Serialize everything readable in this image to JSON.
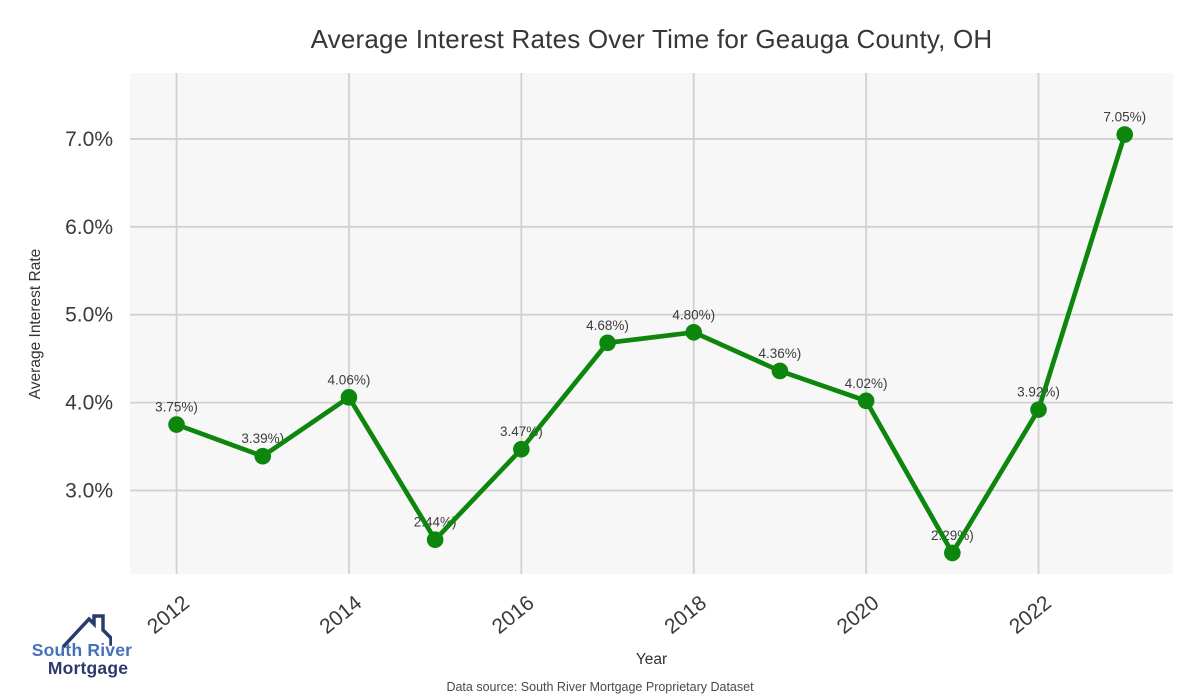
{
  "chart": {
    "title": "Average Interest Rates Over Time for Geauga County, OH",
    "xlabel": "Year",
    "ylabel": "Average Interest Rate",
    "source_note": "Data source: South River Mortgage Proprietary Dataset"
  },
  "logo": {
    "line1": "South River",
    "line2": "Mortgage",
    "icon": "house-roof-icon",
    "line1_color": "#4472ba",
    "line2_color": "#2b3a6e",
    "roof_color": "#2b3a6e"
  },
  "chart_data": {
    "type": "line",
    "title": "Average Interest Rates Over Time for Geauga County, OH",
    "xlabel": "Year",
    "ylabel": "Average Interest Rate",
    "x": [
      2012,
      2013,
      2014,
      2015,
      2016,
      2017,
      2018,
      2019,
      2020,
      2021,
      2022,
      2023
    ],
    "values": [
      3.75,
      3.39,
      4.06,
      2.44,
      3.47,
      4.68,
      4.8,
      4.36,
      4.02,
      2.29,
      3.92,
      7.05
    ],
    "point_labels": [
      "3.75%)",
      "3.39%)",
      "4.06%)",
      "2.44%)",
      "3.47%)",
      "4.68%)",
      "4.80%)",
      "4.36%)",
      "4.02%)",
      "2.29%)",
      "3.92%)",
      "7.05%)"
    ],
    "x_ticks": [
      2012,
      2014,
      2016,
      2018,
      2020,
      2022
    ],
    "x_tick_labels": [
      "2012",
      "2014",
      "2016",
      "2018",
      "2020",
      "2022"
    ],
    "y_ticks": [
      3,
      4,
      5,
      6,
      7
    ],
    "y_tick_labels": [
      "3.0%",
      "4.0%",
      "5.0%",
      "6.0%",
      "7.0%"
    ],
    "x_domain": [
      2011.46,
      2023.56
    ],
    "y_domain": [
      2.05,
      7.75
    ],
    "grid": true,
    "legend": "none",
    "line_color": "#0c860c",
    "marker_color": "#0c860c",
    "plot_bg_color": "#f7f7f7",
    "grid_color": "#d1d1d1",
    "tick_color": "#3a3a3a",
    "point_label_color": "#3c3c3c"
  }
}
